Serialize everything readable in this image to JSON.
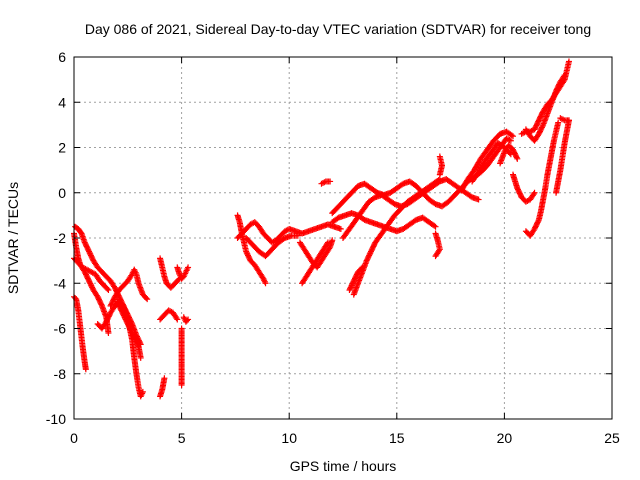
{
  "chart_data": {
    "type": "scatter",
    "title": "Day 086 of 2021, Sidereal Day-to-day VTEC variation (SDTVAR) for receiver tong",
    "xlabel": "GPS time / hours",
    "ylabel": "SDTVAR / TECUs",
    "xlim": [
      0,
      25
    ],
    "ylim": [
      -10,
      6
    ],
    "xticks": [
      0,
      5,
      10,
      15,
      20,
      25
    ],
    "yticks": [
      -10,
      -8,
      -6,
      -4,
      -2,
      0,
      2,
      4,
      6
    ],
    "grid": true,
    "marker": "plus",
    "color": "#ff0000",
    "segments": [
      [
        [
          0.0,
          -4.6
        ],
        [
          0.1,
          -4.7
        ],
        [
          0.2,
          -5.2
        ],
        [
          0.3,
          -6.0
        ],
        [
          0.4,
          -6.8
        ],
        [
          0.5,
          -7.5
        ],
        [
          0.55,
          -7.8
        ]
      ],
      [
        [
          0.0,
          -1.8
        ],
        [
          0.1,
          -2.4
        ],
        [
          0.2,
          -2.9
        ],
        [
          0.3,
          -3.2
        ],
        [
          0.5,
          -3.5
        ],
        [
          0.7,
          -3.9
        ],
        [
          0.9,
          -4.3
        ],
        [
          1.1,
          -4.6
        ],
        [
          1.3,
          -5.0
        ],
        [
          1.5,
          -5.5
        ],
        [
          1.6,
          -6.2
        ]
      ],
      [
        [
          0.0,
          -2.9
        ],
        [
          0.2,
          -3.1
        ],
        [
          0.4,
          -3.3
        ],
        [
          0.6,
          -3.4
        ],
        [
          0.8,
          -3.5
        ],
        [
          1.0,
          -3.6
        ],
        [
          1.2,
          -3.9
        ],
        [
          1.4,
          -4.1
        ],
        [
          1.6,
          -4.3
        ]
      ],
      [
        [
          0.05,
          -1.5
        ],
        [
          0.2,
          -1.6
        ],
        [
          0.35,
          -1.8
        ],
        [
          0.5,
          -2.2
        ],
        [
          0.7,
          -2.6
        ],
        [
          0.9,
          -3.0
        ],
        [
          1.1,
          -3.3
        ],
        [
          1.3,
          -3.5
        ],
        [
          1.5,
          -3.7
        ],
        [
          1.7,
          -3.9
        ],
        [
          1.9,
          -4.2
        ],
        [
          2.1,
          -4.6
        ],
        [
          2.3,
          -5.0
        ],
        [
          2.5,
          -5.6
        ],
        [
          2.7,
          -6.5
        ],
        [
          2.8,
          -7.3
        ],
        [
          2.9,
          -8.0
        ],
        [
          3.0,
          -8.6
        ],
        [
          3.1,
          -9.0
        ],
        [
          3.2,
          -8.8
        ]
      ],
      [
        [
          1.1,
          -5.8
        ],
        [
          1.3,
          -6.0
        ],
        [
          1.5,
          -5.7
        ],
        [
          1.7,
          -5.3
        ],
        [
          1.9,
          -5.0
        ],
        [
          2.1,
          -4.8
        ],
        [
          2.3,
          -5.0
        ],
        [
          2.5,
          -5.4
        ],
        [
          2.7,
          -5.8
        ],
        [
          2.9,
          -6.3
        ],
        [
          3.1,
          -6.7
        ]
      ],
      [
        [
          1.7,
          -5.0
        ],
        [
          1.9,
          -4.6
        ],
        [
          2.1,
          -4.3
        ],
        [
          2.3,
          -4.1
        ],
        [
          2.5,
          -3.9
        ],
        [
          2.7,
          -3.6
        ],
        [
          2.8,
          -3.4
        ],
        [
          2.9,
          -3.6
        ],
        [
          3.0,
          -4.0
        ],
        [
          3.2,
          -4.5
        ],
        [
          3.4,
          -4.7
        ]
      ],
      [
        [
          2.0,
          -4.8
        ],
        [
          2.2,
          -5.2
        ],
        [
          2.4,
          -5.6
        ],
        [
          2.6,
          -6.0
        ],
        [
          2.8,
          -6.4
        ],
        [
          3.0,
          -6.8
        ],
        [
          3.1,
          -7.3
        ]
      ],
      [
        [
          4.0,
          -2.9
        ],
        [
          4.1,
          -3.3
        ],
        [
          4.2,
          -3.7
        ],
        [
          4.3,
          -4.0
        ],
        [
          4.5,
          -4.2
        ],
        [
          4.7,
          -4.0
        ],
        [
          4.9,
          -3.8
        ]
      ],
      [
        [
          4.0,
          -5.6
        ],
        [
          4.2,
          -5.4
        ],
        [
          4.4,
          -5.2
        ],
        [
          4.6,
          -5.3
        ],
        [
          4.8,
          -5.6
        ]
      ],
      [
        [
          4.0,
          -9.0
        ],
        [
          4.1,
          -8.7
        ],
        [
          4.2,
          -8.2
        ]
      ],
      [
        [
          4.8,
          -3.3
        ],
        [
          4.9,
          -3.6
        ],
        [
          5.0,
          -3.8
        ],
        [
          5.1,
          -3.7
        ],
        [
          5.2,
          -3.5
        ],
        [
          5.3,
          -3.3
        ]
      ],
      [
        [
          5.0,
          -6.0
        ],
        [
          5.0,
          -6.5
        ],
        [
          5.0,
          -7.0
        ],
        [
          5.0,
          -7.5
        ],
        [
          5.0,
          -8.0
        ],
        [
          5.0,
          -8.5
        ]
      ],
      [
        [
          5.1,
          -5.5
        ],
        [
          5.2,
          -5.7
        ],
        [
          5.3,
          -5.6
        ]
      ],
      [
        [
          7.6,
          -1.0
        ],
        [
          7.7,
          -1.3
        ],
        [
          7.8,
          -1.8
        ],
        [
          7.9,
          -2.2
        ],
        [
          8.0,
          -2.6
        ],
        [
          8.2,
          -3.0
        ],
        [
          8.4,
          -3.2
        ],
        [
          8.6,
          -3.5
        ],
        [
          8.8,
          -3.8
        ],
        [
          8.9,
          -4.0
        ]
      ],
      [
        [
          7.6,
          -2.0
        ],
        [
          7.8,
          -1.8
        ],
        [
          8.0,
          -1.6
        ],
        [
          8.2,
          -1.4
        ],
        [
          8.4,
          -1.3
        ],
        [
          8.6,
          -1.5
        ],
        [
          8.8,
          -1.8
        ],
        [
          9.0,
          -2.0
        ],
        [
          9.2,
          -2.2
        ],
        [
          9.4,
          -2.1
        ],
        [
          9.6,
          -1.9
        ],
        [
          9.8,
          -1.7
        ],
        [
          10.0,
          -1.6
        ],
        [
          10.3,
          -1.7
        ],
        [
          10.6,
          -1.8
        ],
        [
          10.9,
          -1.7
        ],
        [
          11.2,
          -1.6
        ],
        [
          11.5,
          -1.5
        ],
        [
          11.8,
          -1.4
        ],
        [
          12.1,
          -1.5
        ],
        [
          12.4,
          -1.6
        ]
      ],
      [
        [
          8.0,
          -2.0
        ],
        [
          8.3,
          -2.3
        ],
        [
          8.6,
          -2.6
        ],
        [
          8.9,
          -2.8
        ],
        [
          9.2,
          -2.5
        ],
        [
          9.5,
          -2.2
        ],
        [
          9.8,
          -2.0
        ],
        [
          10.1,
          -1.9
        ],
        [
          10.4,
          -1.9
        ]
      ],
      [
        [
          10.5,
          -2.2
        ],
        [
          10.7,
          -2.5
        ],
        [
          10.9,
          -2.8
        ],
        [
          11.1,
          -3.1
        ],
        [
          11.3,
          -3.3
        ],
        [
          11.5,
          -3.0
        ],
        [
          11.7,
          -2.7
        ],
        [
          11.9,
          -2.4
        ],
        [
          12.0,
          -2.1
        ]
      ],
      [
        [
          10.6,
          -4.0
        ],
        [
          10.8,
          -3.7
        ],
        [
          11.0,
          -3.4
        ],
        [
          11.2,
          -3.1
        ],
        [
          11.4,
          -2.8
        ],
        [
          11.6,
          -2.5
        ],
        [
          11.8,
          -2.2
        ]
      ],
      [
        [
          11.5,
          0.4
        ],
        [
          11.7,
          0.5
        ],
        [
          11.9,
          0.5
        ]
      ],
      [
        [
          12.0,
          -1.3
        ],
        [
          12.3,
          -1.1
        ],
        [
          12.6,
          -1.0
        ],
        [
          12.9,
          -0.9
        ],
        [
          13.2,
          -1.0
        ],
        [
          13.5,
          -1.2
        ],
        [
          13.8,
          -1.3
        ],
        [
          14.1,
          -1.4
        ],
        [
          14.4,
          -1.5
        ],
        [
          14.7,
          -1.6
        ],
        [
          15.0,
          -1.7
        ],
        [
          15.3,
          -1.6
        ],
        [
          15.6,
          -1.4
        ],
        [
          15.9,
          -1.2
        ],
        [
          16.2,
          -1.1
        ],
        [
          16.5,
          -1.3
        ],
        [
          16.8,
          -1.5
        ]
      ],
      [
        [
          12.5,
          -2.0
        ],
        [
          12.8,
          -1.6
        ],
        [
          13.1,
          -1.2
        ],
        [
          13.4,
          -0.8
        ],
        [
          13.7,
          -0.4
        ],
        [
          14.0,
          -0.2
        ],
        [
          14.3,
          -0.1
        ],
        [
          14.6,
          -0.3
        ],
        [
          14.9,
          -0.5
        ],
        [
          15.2,
          -0.6
        ],
        [
          15.5,
          -0.5
        ],
        [
          15.8,
          -0.3
        ],
        [
          16.1,
          -0.1
        ],
        [
          16.4,
          0.1
        ],
        [
          16.7,
          0.3
        ],
        [
          17.0,
          0.5
        ],
        [
          17.3,
          0.6
        ],
        [
          17.6,
          0.4
        ],
        [
          17.9,
          0.2
        ],
        [
          18.2,
          0.0
        ],
        [
          18.5,
          -0.2
        ],
        [
          18.8,
          -0.3
        ]
      ],
      [
        [
          12.0,
          -0.9
        ],
        [
          12.3,
          -0.6
        ],
        [
          12.6,
          -0.3
        ],
        [
          12.9,
          0.0
        ],
        [
          13.2,
          0.3
        ],
        [
          13.5,
          0.4
        ],
        [
          13.8,
          0.2
        ],
        [
          14.1,
          0.0
        ],
        [
          14.4,
          -0.1
        ],
        [
          14.7,
          0.0
        ],
        [
          15.0,
          0.2
        ],
        [
          15.3,
          0.4
        ],
        [
          15.6,
          0.5
        ],
        [
          15.9,
          0.3
        ],
        [
          16.2,
          0.0
        ],
        [
          16.5,
          -0.3
        ],
        [
          16.8,
          -0.5
        ],
        [
          17.1,
          -0.6
        ],
        [
          17.4,
          -0.4
        ],
        [
          17.7,
          -0.1
        ],
        [
          18.0,
          0.2
        ],
        [
          18.3,
          0.5
        ],
        [
          18.6,
          0.7
        ],
        [
          18.9,
          0.9
        ],
        [
          19.2,
          1.2
        ],
        [
          19.5,
          1.6
        ],
        [
          19.8,
          2.0
        ],
        [
          20.1,
          2.4
        ],
        [
          20.3,
          2.3
        ]
      ],
      [
        [
          13.0,
          -4.5
        ],
        [
          13.2,
          -4.0
        ],
        [
          13.4,
          -3.5
        ],
        [
          13.6,
          -3.0
        ],
        [
          13.8,
          -2.6
        ],
        [
          14.0,
          -2.2
        ],
        [
          14.3,
          -1.8
        ],
        [
          14.6,
          -1.4
        ],
        [
          14.9,
          -1.0
        ],
        [
          15.2,
          -0.7
        ],
        [
          15.5,
          -0.4
        ],
        [
          15.8,
          -0.2
        ],
        [
          16.1,
          0.0
        ],
        [
          16.4,
          0.2
        ],
        [
          16.7,
          0.4
        ],
        [
          17.0,
          0.6
        ]
      ],
      [
        [
          12.8,
          -4.3
        ],
        [
          13.0,
          -3.9
        ],
        [
          13.2,
          -3.5
        ],
        [
          13.4,
          -3.3
        ]
      ],
      [
        [
          16.8,
          -1.8
        ],
        [
          16.9,
          -2.1
        ],
        [
          17.0,
          -2.5
        ],
        [
          16.8,
          -2.8
        ]
      ],
      [
        [
          17.0,
          1.6
        ],
        [
          17.1,
          1.2
        ],
        [
          17.0,
          0.8
        ]
      ],
      [
        [
          18.0,
          0.1
        ],
        [
          18.3,
          0.6
        ],
        [
          18.6,
          1.0
        ],
        [
          18.9,
          1.5
        ],
        [
          19.2,
          1.9
        ],
        [
          19.5,
          2.3
        ],
        [
          19.8,
          2.6
        ],
        [
          20.1,
          2.7
        ],
        [
          20.4,
          2.5
        ]
      ],
      [
        [
          18.5,
          0.5
        ],
        [
          18.8,
          0.9
        ],
        [
          19.1,
          1.4
        ],
        [
          19.4,
          1.8
        ],
        [
          19.7,
          2.2
        ],
        [
          20.0,
          2.0
        ],
        [
          20.3,
          1.7
        ]
      ],
      [
        [
          19.8,
          1.3
        ],
        [
          20.0,
          1.8
        ],
        [
          20.2,
          2.1
        ],
        [
          20.4,
          1.9
        ],
        [
          20.6,
          1.5
        ]
      ],
      [
        [
          20.4,
          0.8
        ],
        [
          20.5,
          0.5
        ],
        [
          20.6,
          0.2
        ],
        [
          20.8,
          -0.2
        ],
        [
          21.0,
          -0.4
        ],
        [
          21.2,
          -0.3
        ],
        [
          21.4,
          0.0
        ]
      ],
      [
        [
          20.8,
          2.6
        ],
        [
          21.0,
          2.7
        ],
        [
          21.2,
          2.7
        ],
        [
          21.4,
          2.8
        ],
        [
          21.6,
          3.2
        ],
        [
          21.8,
          3.6
        ],
        [
          22.0,
          3.9
        ],
        [
          22.2,
          4.1
        ],
        [
          22.4,
          4.4
        ],
        [
          22.6,
          4.7
        ],
        [
          22.8,
          5.0
        ],
        [
          22.9,
          5.4
        ],
        [
          23.0,
          5.8
        ]
      ],
      [
        [
          21.0,
          2.8
        ],
        [
          21.2,
          2.5
        ],
        [
          21.4,
          2.3
        ],
        [
          21.6,
          2.6
        ],
        [
          21.8,
          3.0
        ],
        [
          22.0,
          3.5
        ],
        [
          22.2,
          4.0
        ],
        [
          22.4,
          4.5
        ],
        [
          22.6,
          4.9
        ],
        [
          22.8,
          5.2
        ]
      ],
      [
        [
          21.0,
          -1.7
        ],
        [
          21.2,
          -1.9
        ],
        [
          21.4,
          -1.6
        ],
        [
          21.6,
          -1.2
        ],
        [
          21.7,
          -0.8
        ],
        [
          21.8,
          -0.3
        ],
        [
          21.9,
          0.2
        ],
        [
          22.0,
          0.8
        ],
        [
          22.1,
          1.3
        ],
        [
          22.2,
          1.8
        ],
        [
          22.3,
          2.3
        ],
        [
          22.4,
          2.7
        ],
        [
          22.5,
          3.1
        ]
      ],
      [
        [
          22.4,
          0.0
        ],
        [
          22.5,
          0.5
        ],
        [
          22.6,
          1.0
        ],
        [
          22.7,
          1.6
        ],
        [
          22.8,
          2.2
        ],
        [
          22.9,
          2.7
        ],
        [
          23.0,
          3.2
        ]
      ],
      [
        [
          22.6,
          3.3
        ],
        [
          22.8,
          3.2
        ],
        [
          23.0,
          3.2
        ]
      ]
    ]
  }
}
